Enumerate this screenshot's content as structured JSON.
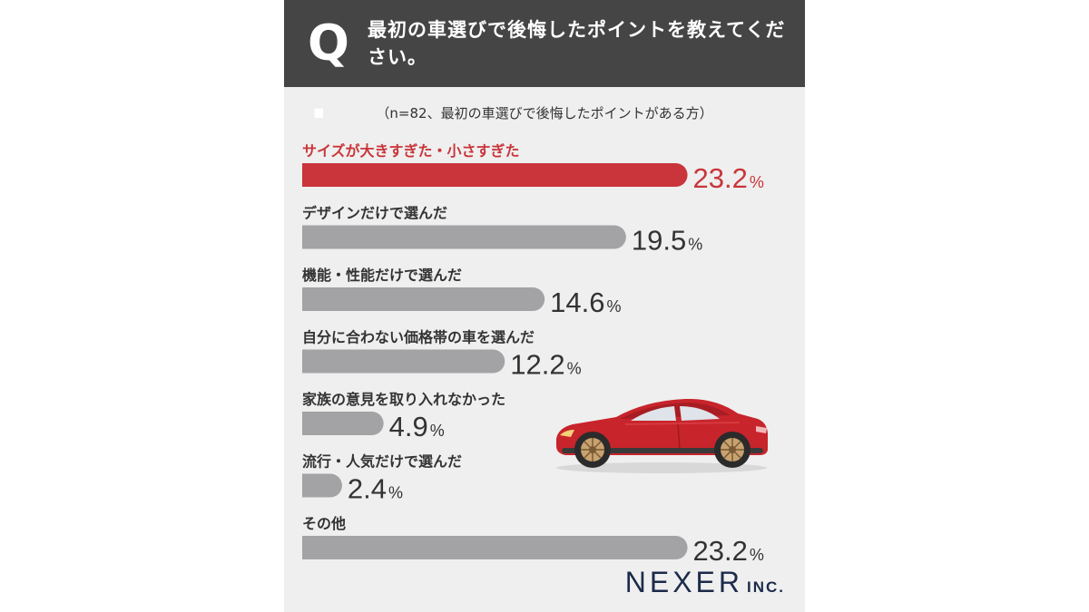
{
  "header": {
    "q_mark": "Q",
    "question": "最初の車選びで後悔したポイントを教えてください。"
  },
  "note": "（n=82、最初の車選びで後悔したポイントがある方）",
  "colors": {
    "highlight": "#c9353a",
    "bar": "#a3a3a6",
    "header_bg": "#454545",
    "panel_bg": "#efefef"
  },
  "chart_data": {
    "type": "bar",
    "orientation": "horizontal",
    "categories": [
      "サイズが大きすぎた・小さすぎた",
      "デザインだけで選んだ",
      "機能・性能だけで選んだ",
      "自分に合わない価格帯の車を選んだ",
      "家族の意見を取り入れなかった",
      "流行・人気だけで選んだ",
      "その他"
    ],
    "values": [
      23.2,
      19.5,
      14.6,
      12.2,
      4.9,
      2.4,
      23.2
    ],
    "value_labels": [
      "23.2",
      "19.5",
      "14.6",
      "12.2",
      "4.9",
      "2.4",
      "23.2"
    ],
    "unit": "%",
    "highlight_index": 0
  },
  "logo": {
    "main": "NEXER",
    "sub": "INC."
  },
  "illustration": "red-car-icon"
}
